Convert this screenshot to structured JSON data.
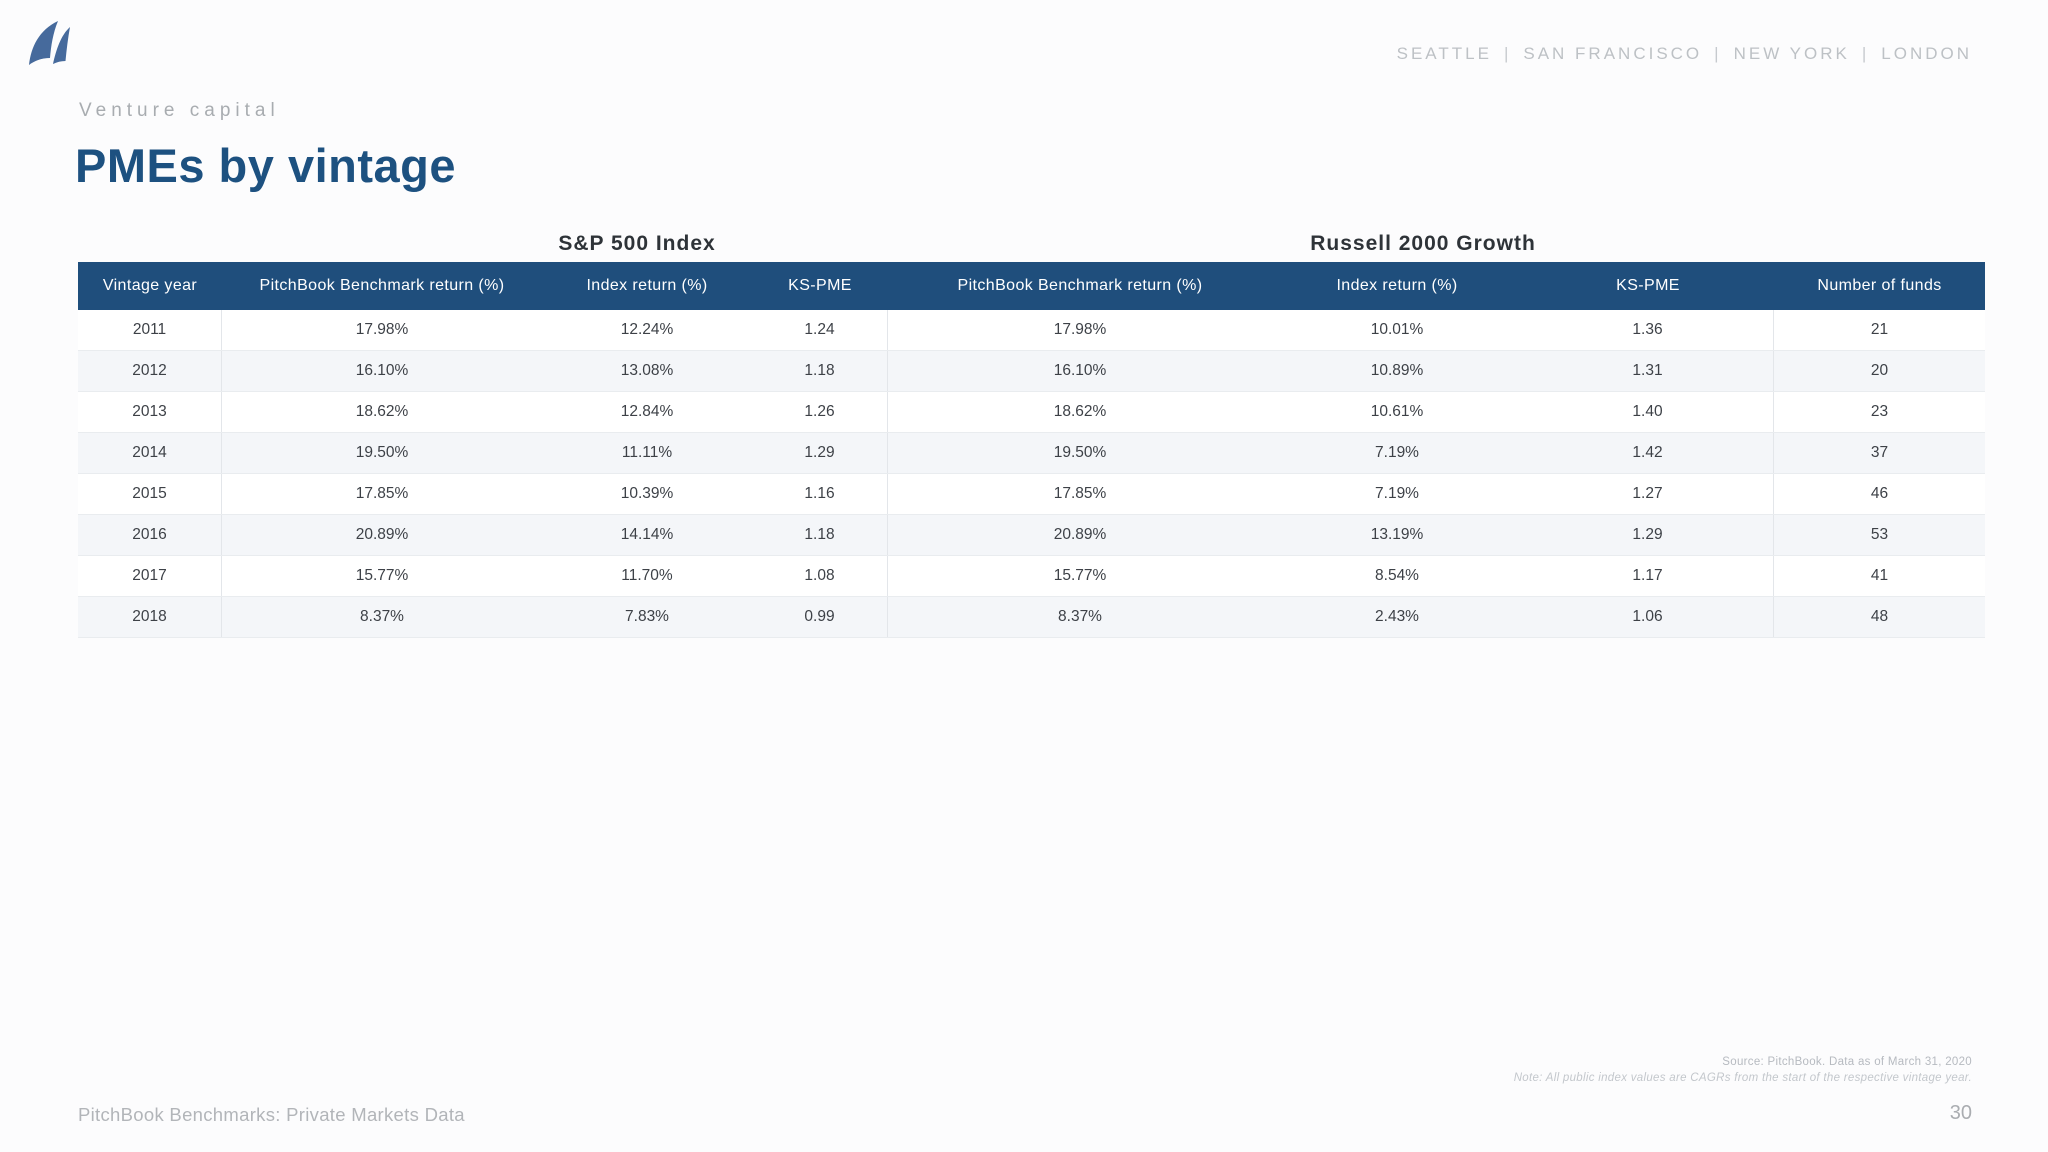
{
  "header": {
    "cities": [
      "SEATTLE",
      "SAN FRANCISCO",
      "NEW YORK",
      "LONDON"
    ],
    "cities_separator": "|"
  },
  "eyebrow": "Venture capital",
  "title": "PMEs by vintage",
  "table": {
    "group_titles": [
      "S&P 500 Index",
      "Russell 2000 Growth"
    ],
    "columns": [
      "Vintage year",
      "PitchBook Benchmark return (%)",
      "Index return (%)",
      "KS-PME",
      "PitchBook Benchmark return (%)",
      "Index return (%)",
      "KS-PME",
      "Number of funds"
    ],
    "rows": [
      [
        "2011",
        "17.98%",
        "12.24%",
        "1.24",
        "17.98%",
        "10.01%",
        "1.36",
        "21"
      ],
      [
        "2012",
        "16.10%",
        "13.08%",
        "1.18",
        "16.10%",
        "10.89%",
        "1.31",
        "20"
      ],
      [
        "2013",
        "18.62%",
        "12.84%",
        "1.26",
        "18.62%",
        "10.61%",
        "1.40",
        "23"
      ],
      [
        "2014",
        "19.50%",
        "11.11%",
        "1.29",
        "19.50%",
        "7.19%",
        "1.42",
        "37"
      ],
      [
        "2015",
        "17.85%",
        "10.39%",
        "1.16",
        "17.85%",
        "7.19%",
        "1.27",
        "46"
      ],
      [
        "2016",
        "20.89%",
        "14.14%",
        "1.18",
        "20.89%",
        "13.19%",
        "1.29",
        "53"
      ],
      [
        "2017",
        "15.77%",
        "11.70%",
        "1.08",
        "15.77%",
        "8.54%",
        "1.17",
        "41"
      ],
      [
        "2018",
        "8.37%",
        "7.83%",
        "0.99",
        "8.37%",
        "2.43%",
        "1.06",
        "48"
      ]
    ]
  },
  "footnote": {
    "source": "Source: PitchBook. Data as of March 31, 2020",
    "note": "Note: All public index values are CAGRs from the start of the respective vintage year."
  },
  "footer": {
    "left": "PitchBook Benchmarks: Private Markets Data",
    "page_number": "30"
  },
  "icons": {
    "logo": "pitchbook-sail-logo"
  },
  "colors": {
    "header_navy": "#1f4e7c",
    "title_blue": "#1d5180",
    "logo_blue": "#466a9c",
    "row_stripe": "#f4f6f9",
    "row_border": "#e9ecef",
    "body_text": "#3d4147",
    "muted_gray": "#b2b5b9",
    "background": "#fcfcfd"
  }
}
